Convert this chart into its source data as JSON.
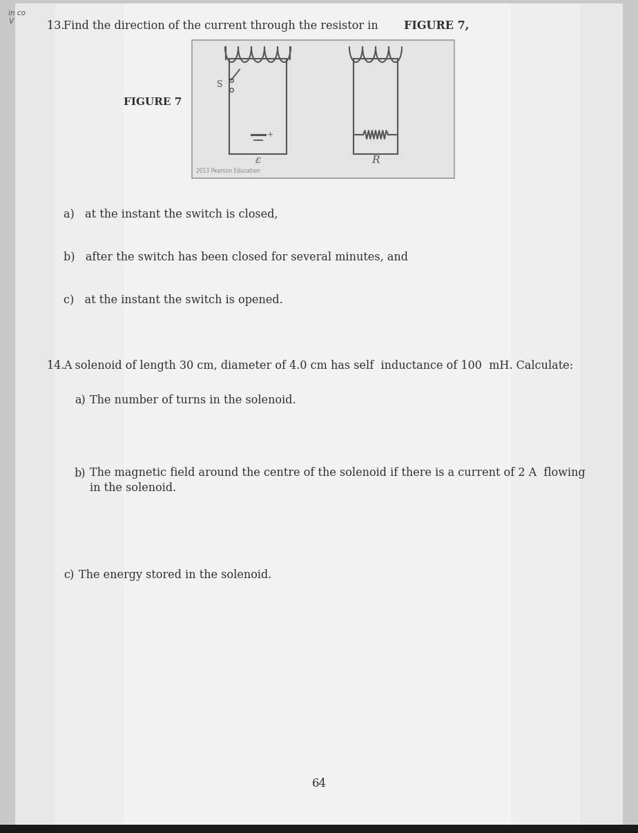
{
  "bg_color": "#c8c8c8",
  "page_color": "#e6e6e6",
  "text_color": "#404040",
  "dark_text": "#303030",
  "title_num": "13.",
  "title_text": " Find the direction of the current through the resistor in ",
  "title_bold": "FIGURE 7,",
  "figure_label": "FIGURE 7",
  "q13_a": "a)   at the instant the switch is closed,",
  "q13_b": "b)   after the switch has been closed for several minutes, and",
  "q13_c": "c)   at the instant the switch is opened.",
  "q14_num": "14.",
  "q14_text": "A solenoid of length 30 cm, diameter of 4.0 cm has self  inductance of 100  mH. Calculate:",
  "q14_a_label": "a)",
  "q14_a_text": "The number of turns in the solenoid.",
  "q14_b_label": "b)",
  "q14_b_text": "The magnetic field around the centre of the solenoid if there is a current of 2 A  flowing\n        in the solenoid.",
  "q14_c_label": "c)",
  "q14_c_text": "The energy stored in the solenoid.",
  "page_num": "64",
  "corner_text": "in co\nV",
  "watermark": "2013 Pearson Education"
}
